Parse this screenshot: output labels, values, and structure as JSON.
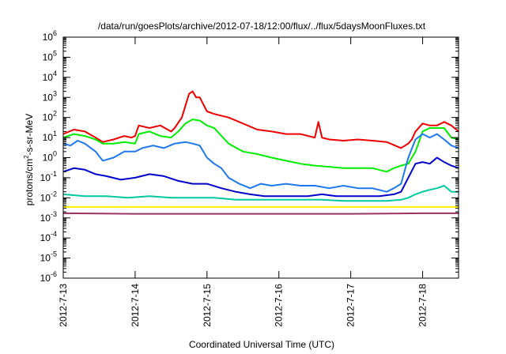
{
  "chart_data": {
    "type": "line",
    "title": "/data/run/goesPlots/archive/2012-07-18/12:00/flux/../flux/5daysMoonFluxes.txt",
    "xlabel": "Coordinated Universal Time (UTC)",
    "ylabel": {
      "prefix": "protons/cm",
      "superscript": "2",
      "suffix": "-s-sr-MeV"
    },
    "y_scale": "log",
    "ylim": [
      1e-06,
      1000000.0
    ],
    "y_ticks": [
      {
        "exp": "-6",
        "value": 1e-06
      },
      {
        "exp": "-5",
        "value": 1e-05
      },
      {
        "exp": "-4",
        "value": 0.0001
      },
      {
        "exp": "-3",
        "value": 0.001
      },
      {
        "exp": "-2",
        "value": 0.01
      },
      {
        "exp": "-1",
        "value": 0.1
      },
      {
        "exp": "0",
        "value": 1
      },
      {
        "exp": "1",
        "value": 10
      },
      {
        "exp": "2",
        "value": 100
      },
      {
        "exp": "3",
        "value": 1000
      },
      {
        "exp": "4",
        "value": 10000
      },
      {
        "exp": "5",
        "value": 100000
      },
      {
        "exp": "6",
        "value": 1000000
      }
    ],
    "y_tick_base": "10",
    "xlim": [
      "2012-07-13",
      "2012-07-18 12:00"
    ],
    "x_ticks": [
      "2012-7-13",
      "2012-7-14",
      "2012-7-15",
      "2012-7-16",
      "2012-7-17",
      "2012-7-18"
    ],
    "x_ticks_days": [
      0,
      1,
      2,
      3,
      4,
      5
    ],
    "x_range_days": [
      0,
      5.5
    ],
    "grid": false,
    "series": [
      {
        "color": "#ee0000",
        "x": [
          0,
          0.15,
          0.3,
          0.45,
          0.55,
          0.7,
          0.85,
          0.95,
          1.0,
          1.05,
          1.2,
          1.35,
          1.5,
          1.55,
          1.65,
          1.75,
          1.8,
          1.85,
          1.9,
          2.0,
          2.1,
          2.3,
          2.5,
          2.7,
          2.9,
          3.1,
          3.3,
          3.5,
          3.55,
          3.6,
          3.7,
          3.9,
          4.1,
          4.3,
          4.5,
          4.7,
          4.8,
          4.85,
          4.9,
          5.0,
          5.1,
          5.2,
          5.3,
          5.4,
          5.5
        ],
        "y": [
          15,
          25,
          20,
          10,
          6,
          8,
          12,
          10,
          12,
          40,
          30,
          40,
          20,
          30,
          100,
          1500,
          2000,
          1000,
          1000,
          200,
          150,
          100,
          50,
          25,
          20,
          15,
          15,
          10,
          60,
          10,
          8,
          7,
          8,
          7,
          6,
          3,
          5,
          8,
          20,
          50,
          40,
          40,
          60,
          40,
          20
        ]
      },
      {
        "color": "#00ee00",
        "x": [
          0,
          0.15,
          0.3,
          0.45,
          0.55,
          0.7,
          0.85,
          1.0,
          1.05,
          1.2,
          1.35,
          1.5,
          1.6,
          1.7,
          1.8,
          1.9,
          2.0,
          2.1,
          2.3,
          2.5,
          2.7,
          2.9,
          3.1,
          3.3,
          3.5,
          3.7,
          3.9,
          4.1,
          4.3,
          4.5,
          4.6,
          4.7,
          4.8,
          4.9,
          5.0,
          5.1,
          5.2,
          5.3,
          5.4,
          5.5
        ],
        "y": [
          10,
          15,
          12,
          8,
          5,
          5,
          6,
          5,
          15,
          20,
          12,
          10,
          20,
          50,
          80,
          70,
          40,
          30,
          5,
          2,
          1.5,
          1,
          0.7,
          0.5,
          0.4,
          0.35,
          0.3,
          0.3,
          0.3,
          0.2,
          0.3,
          0.4,
          0.5,
          2,
          20,
          30,
          30,
          30,
          10,
          8
        ]
      },
      {
        "color": "#1e78ee",
        "x": [
          0,
          0.1,
          0.2,
          0.3,
          0.45,
          0.55,
          0.7,
          0.85,
          1.0,
          1.1,
          1.25,
          1.4,
          1.55,
          1.7,
          1.8,
          1.9,
          2.0,
          2.1,
          2.2,
          2.3,
          2.45,
          2.6,
          2.75,
          2.9,
          3.1,
          3.3,
          3.5,
          3.7,
          3.9,
          4.1,
          4.3,
          4.5,
          4.6,
          4.7,
          4.8,
          4.9,
          5.0,
          5.1,
          5.2,
          5.3,
          5.4,
          5.5
        ],
        "y": [
          5,
          4,
          7,
          5,
          2,
          0.7,
          1,
          2,
          2,
          3,
          4,
          3,
          5,
          6,
          5,
          4,
          1,
          0.5,
          0.3,
          0.1,
          0.05,
          0.03,
          0.05,
          0.04,
          0.05,
          0.04,
          0.04,
          0.03,
          0.04,
          0.03,
          0.03,
          0.02,
          0.03,
          0.05,
          1,
          8,
          15,
          10,
          15,
          8,
          4,
          3
        ]
      },
      {
        "color": "#0000cc",
        "x": [
          0,
          0.15,
          0.3,
          0.45,
          0.6,
          0.8,
          1.0,
          1.2,
          1.4,
          1.6,
          1.8,
          2.0,
          2.2,
          2.4,
          2.6,
          2.8,
          3.0,
          3.2,
          3.4,
          3.6,
          3.8,
          4.0,
          4.2,
          4.4,
          4.6,
          4.7,
          4.8,
          4.9,
          5.0,
          5.1,
          5.2,
          5.3,
          5.4,
          5.5
        ],
        "y": [
          0.2,
          0.3,
          0.25,
          0.15,
          0.12,
          0.08,
          0.1,
          0.15,
          0.12,
          0.07,
          0.05,
          0.05,
          0.03,
          0.02,
          0.015,
          0.012,
          0.012,
          0.012,
          0.012,
          0.015,
          0.012,
          0.012,
          0.012,
          0.012,
          0.015,
          0.02,
          0.1,
          0.5,
          0.6,
          0.5,
          1,
          0.6,
          0.4,
          0.3
        ]
      },
      {
        "color": "#00c8a0",
        "x": [
          0,
          0.3,
          0.6,
          0.9,
          1.2,
          1.5,
          1.8,
          2.1,
          2.4,
          2.7,
          3.0,
          3.3,
          3.6,
          3.9,
          4.2,
          4.5,
          4.7,
          4.8,
          4.9,
          5.0,
          5.1,
          5.2,
          5.3,
          5.4,
          5.5
        ],
        "y": [
          0.015,
          0.012,
          0.012,
          0.01,
          0.012,
          0.01,
          0.01,
          0.01,
          0.008,
          0.008,
          0.008,
          0.008,
          0.008,
          0.007,
          0.007,
          0.007,
          0.008,
          0.01,
          0.015,
          0.02,
          0.025,
          0.03,
          0.04,
          0.02,
          0.02
        ]
      },
      {
        "color": "#ffee00",
        "x": [
          0,
          1,
          2,
          3,
          4,
          5,
          5.5
        ],
        "y": [
          0.0035,
          0.0035,
          0.0035,
          0.0035,
          0.0035,
          0.0035,
          0.0035
        ]
      },
      {
        "color": "#993366",
        "x": [
          0,
          1,
          2,
          3,
          4,
          5,
          5.5
        ],
        "y": [
          0.0017,
          0.0016,
          0.0016,
          0.0016,
          0.0016,
          0.0017,
          0.0017
        ]
      }
    ]
  }
}
